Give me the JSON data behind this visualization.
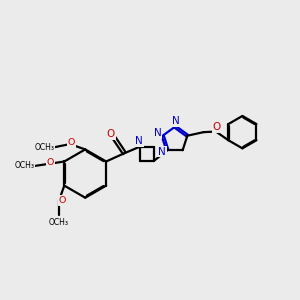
{
  "bg_color": "#ebebeb",
  "bond_color": "#000000",
  "n_color": "#0000cc",
  "o_color": "#cc0000",
  "line_width": 1.6,
  "dbo": 0.055,
  "figsize": [
    3.0,
    3.0
  ],
  "dpi": 100,
  "xlim": [
    0.0,
    10.0
  ],
  "ylim": [
    0.0,
    10.0
  ]
}
